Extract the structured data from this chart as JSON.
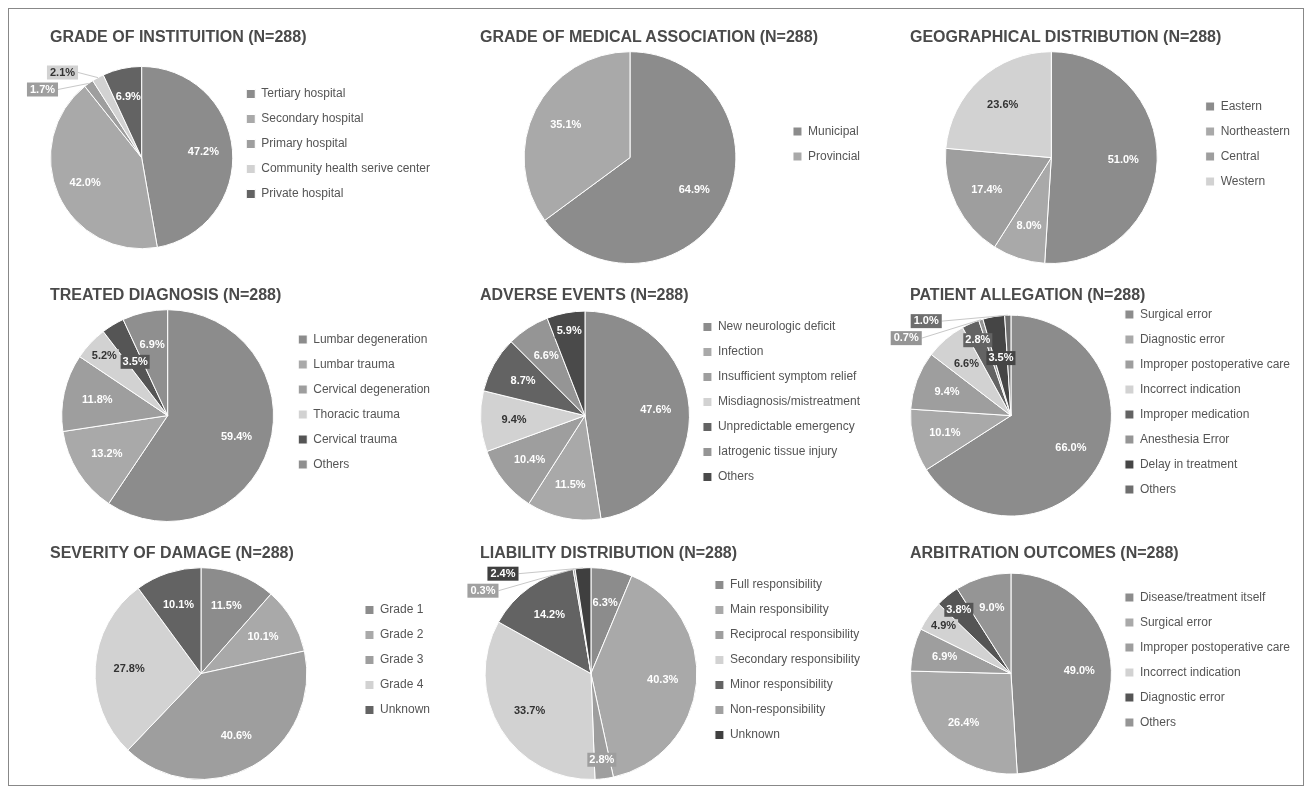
{
  "chart_data": [
    {
      "type": "pie",
      "title": "GRADE OF INSTITUITION (N=288)",
      "categories": [
        "Tertiary hospital",
        "Secondary hospital",
        "Primary hospital",
        "Community health serive center",
        "Private hospital"
      ],
      "values": [
        47.2,
        42.0,
        1.7,
        2.1,
        6.9
      ],
      "value_labels": [
        "47.2%",
        "42.0%",
        "1.7%",
        "2.1%",
        "6.9%"
      ],
      "colors": [
        "#8c8c8c",
        "#a9a9a9",
        "#9e9e9e",
        "#d2d2d2",
        "#636363"
      ],
      "legend": "right"
    },
    {
      "type": "pie",
      "title": "GRADE OF MEDICAL ASSOCIATION (N=288)",
      "categories": [
        "Municipal",
        "Provincial"
      ],
      "values": [
        64.9,
        35.1
      ],
      "value_labels": [
        "64.9%",
        "35.1%"
      ],
      "colors": [
        "#8c8c8c",
        "#a9a9a9"
      ],
      "legend": "right"
    },
    {
      "type": "pie",
      "title": "GEOGRAPHICAL DISTRIBUTION (N=288)",
      "categories": [
        "Eastern",
        "Northeastern",
        "Central",
        "Western"
      ],
      "values": [
        51.0,
        8.0,
        17.4,
        23.6
      ],
      "value_labels": [
        "51.0%",
        "8.0%",
        "17.4%",
        "23.6%"
      ],
      "colors": [
        "#8c8c8c",
        "#a9a9a9",
        "#9e9e9e",
        "#d2d2d2"
      ],
      "legend": "right"
    },
    {
      "type": "pie",
      "title": "TREATED DIAGNOSIS (N=288)",
      "categories": [
        "Lumbar degeneration",
        "Lumbar trauma",
        "Cervical degeneration",
        "Thoracic trauma",
        "Cervical trauma",
        "Others"
      ],
      "values": [
        59.4,
        13.2,
        11.8,
        5.2,
        3.5,
        6.9
      ],
      "value_labels": [
        "59.4%",
        "13.2%",
        "11.8%",
        "5.2%",
        "3.5%",
        "6.9%"
      ],
      "colors": [
        "#8c8c8c",
        "#a9a9a9",
        "#9e9e9e",
        "#d2d2d2",
        "#555555",
        "#8f8f8f"
      ],
      "legend": "right"
    },
    {
      "type": "pie",
      "title": "ADVERSE EVENTS (N=288)",
      "categories": [
        "New neurologic deficit",
        "Infection",
        "Insufficient symptom relief",
        "Misdiagnosis/mistreatment",
        "Unpredictable emergency",
        "Iatrogenic tissue injury",
        "Others"
      ],
      "values": [
        47.6,
        11.5,
        10.4,
        9.4,
        8.7,
        6.6,
        5.9
      ],
      "value_labels": [
        "47.6%",
        "11.5%",
        "10.4%",
        "9.4%",
        "8.7%",
        "6.6%",
        "5.9%"
      ],
      "colors": [
        "#8c8c8c",
        "#a9a9a9",
        "#9e9e9e",
        "#d2d2d2",
        "#636363",
        "#959595",
        "#4a4a4a"
      ],
      "legend": "right"
    },
    {
      "type": "pie",
      "title": "PATIENT ALLEGATION (N=288)",
      "categories": [
        "Surgical error",
        "Diagnostic error",
        "Improper postoperative care",
        "Incorrect indication",
        "Improper medication",
        "Anesthesia Error",
        "Delay in treatment",
        "Others"
      ],
      "values": [
        66.0,
        10.1,
        9.4,
        6.6,
        2.8,
        0.7,
        3.5,
        1.0
      ],
      "value_labels": [
        "66.0%",
        "10.1%",
        "9.4%",
        "6.6%",
        "2.8%",
        "0.7%",
        "3.5%",
        "1.0%"
      ],
      "colors": [
        "#8c8c8c",
        "#a9a9a9",
        "#9e9e9e",
        "#d2d2d2",
        "#636363",
        "#959595",
        "#454545",
        "#6e6e6e"
      ],
      "legend": "right"
    },
    {
      "type": "pie",
      "title": "SEVERITY OF DAMAGE (N=288)",
      "categories": [
        "Grade 1",
        "Grade 2",
        "Grade 3",
        "Grade 4",
        "Unknown"
      ],
      "values": [
        11.5,
        10.1,
        40.6,
        27.8,
        10.1
      ],
      "value_labels": [
        "11.5%",
        "10.1%",
        "40.6%",
        "27.8%",
        "10.1%"
      ],
      "colors": [
        "#8c8c8c",
        "#a9a9a9",
        "#9e9e9e",
        "#d2d2d2",
        "#636363"
      ],
      "legend": "right"
    },
    {
      "type": "pie",
      "title": "LIABILITY DISTRIBUTION (N=288)",
      "categories": [
        "Full responsibility",
        "Main responsibility",
        "Reciprocal responsibility",
        "Secondary responsibility",
        "Minor responsibility",
        "Non-responsibility",
        "Unknown"
      ],
      "values": [
        6.3,
        40.3,
        2.8,
        33.7,
        14.2,
        0.3,
        2.4
      ],
      "value_labels": [
        "6.3%",
        "40.3%",
        "2.8%",
        "33.7%",
        "14.2%",
        "0.3%",
        "2.4%"
      ],
      "colors": [
        "#8c8c8c",
        "#a9a9a9",
        "#9e9e9e",
        "#d2d2d2",
        "#636363",
        "#a0a0a0",
        "#3f3f3f"
      ],
      "legend": "right"
    },
    {
      "type": "pie",
      "title": "ARBITRATION OUTCOMES (N=288)",
      "categories": [
        "Disease/treatment itself",
        "Surgical error",
        "Improper postoperative care",
        "Incorrect indication",
        "Diagnostic error",
        "Others"
      ],
      "values": [
        49.0,
        26.4,
        6.9,
        4.9,
        3.8,
        9.0
      ],
      "value_labels": [
        "49.0%",
        "26.4%",
        "6.9%",
        "4.9%",
        "3.8%",
        "9.0%"
      ],
      "colors": [
        "#8c8c8c",
        "#a9a9a9",
        "#9e9e9e",
        "#d2d2d2",
        "#555555",
        "#959595"
      ],
      "legend": "right"
    }
  ]
}
